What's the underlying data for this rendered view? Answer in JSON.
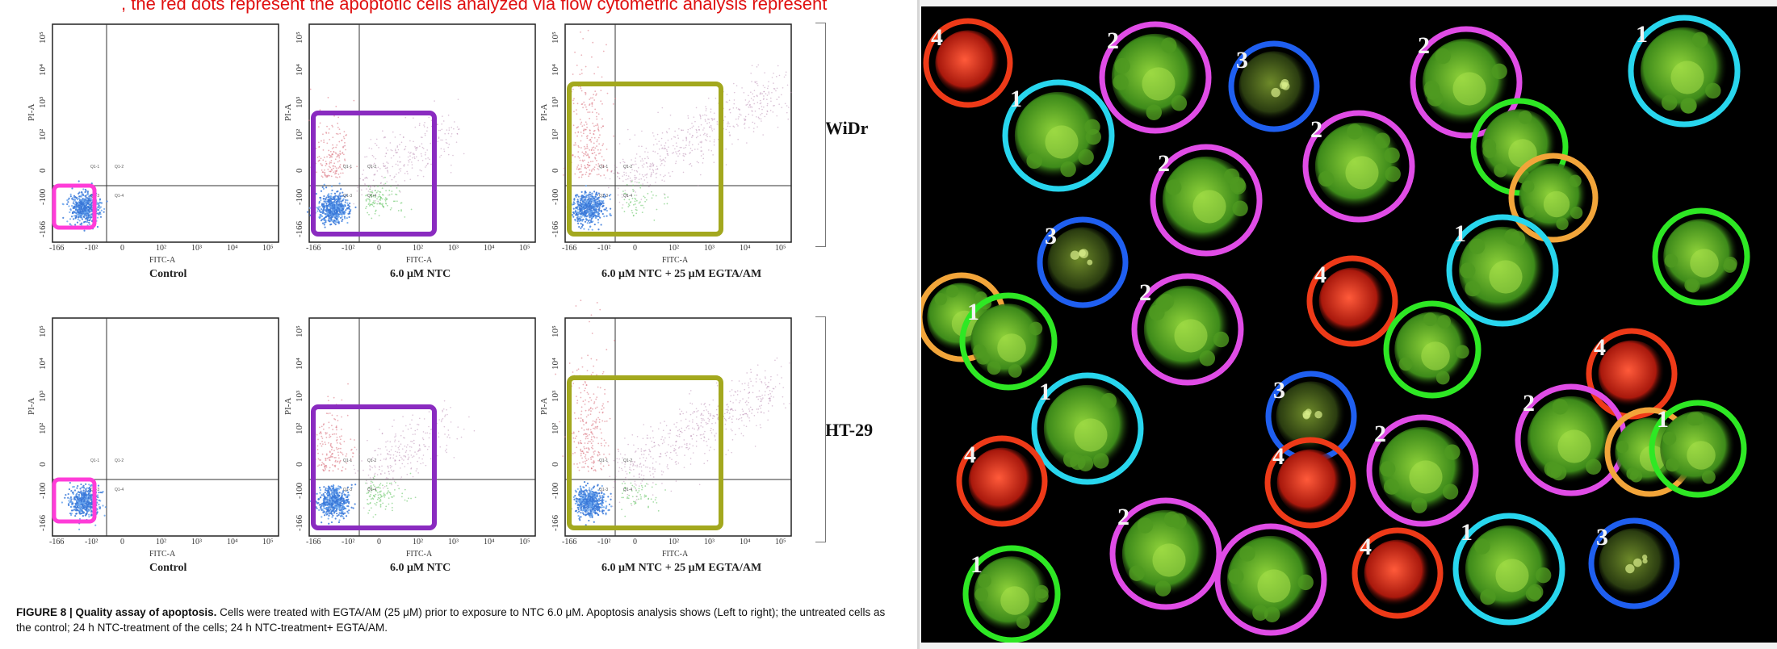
{
  "header_fragment": ", the red dots represent the apoptotic cells analyzed via flow cytometric analysis represent",
  "panels": [
    {
      "row": "WiDr",
      "col": 0,
      "title": "Control"
    },
    {
      "row": "WiDr",
      "col": 1,
      "title": "6.0 μM NTC"
    },
    {
      "row": "WiDr",
      "col": 2,
      "title": "6.0 μM NTC + 25 μM EGTA/AM"
    },
    {
      "row": "HT-29",
      "col": 0,
      "title": "Control"
    },
    {
      "row": "HT-29",
      "col": 1,
      "title": "6.0 μM NTC"
    },
    {
      "row": "HT-29",
      "col": 2,
      "title": "6.0 μM NTC + 25 μM EGTA/AM"
    }
  ],
  "axes": {
    "x_label": "FITC-A",
    "y_label": "PI-A",
    "x_ticks": [
      "-166",
      "-10²",
      "0",
      "10²",
      "10³",
      "10⁴",
      "10⁵"
    ],
    "y_ticks": [
      "-166",
      "-100",
      "0",
      "10²",
      "10³",
      "10⁴",
      "10⁵"
    ],
    "quadrants": [
      "Q1-1",
      "Q1-2",
      "Q1-3",
      "Q1-4"
    ]
  },
  "row_labels": {
    "widr": "WiDr",
    "ht29": "HT-29"
  },
  "caption": {
    "label": "FIGURE 8 | Quality assay of apoptosis.",
    "text": "Cells were treated with EGTA/AM (25 μM) prior to exposure to NTC 6.0 μM. Apoptosis analysis shows (Left to right); the untreated cells as the control; 24 h NTC-treatment of the cells; 24 h NTC-treatment+ EGTA/AM."
  },
  "highlight_colors": {
    "control": "#ff3cd8",
    "ntc": "#8a2bc0",
    "egta": "#a3a81e"
  },
  "cell_labels": [
    "1",
    "2",
    "3",
    "4"
  ],
  "ring_colors": {
    "cyan": "#28d6ee",
    "green": "#2ee824",
    "magenta": "#e04ce6",
    "blue": "#1f5ff0",
    "red": "#ee3a18",
    "orange": "#f2a53a"
  }
}
